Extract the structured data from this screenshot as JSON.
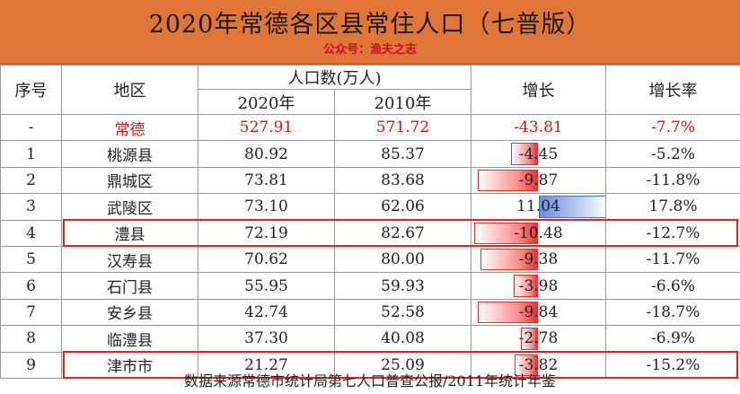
{
  "header": {
    "title": "2020年常德各区县常住人口（七普版）",
    "subtitle": "公众号：渔夫之志"
  },
  "table": {
    "headers": {
      "seq": "序号",
      "region": "地区",
      "population": "人口数(万人)",
      "y2020": "2020年",
      "y2010": "2010年",
      "growth": "增长",
      "rate": "增长率"
    },
    "rows": [
      {
        "seq": "-",
        "region": "常德",
        "p2020": "527.91",
        "p2010": "571.72",
        "growth": "-43.81",
        "rate": "-7.7%",
        "growth_value": -43.81
      },
      {
        "seq": "1",
        "region": "桃源县",
        "p2020": "80.92",
        "p2010": "85.37",
        "growth": "-4.45",
        "rate": "-5.2%",
        "growth_value": -4.45
      },
      {
        "seq": "2",
        "region": "鼎城区",
        "p2020": "73.81",
        "p2010": "83.68",
        "growth": "-9.87",
        "rate": "-11.8%",
        "growth_value": -9.87
      },
      {
        "seq": "3",
        "region": "武陵区",
        "p2020": "73.10",
        "p2010": "62.06",
        "growth": "11.04",
        "rate": "17.8%",
        "growth_value": 11.04
      },
      {
        "seq": "4",
        "region": "澧县",
        "p2020": "72.19",
        "p2010": "82.67",
        "growth": "-10.48",
        "rate": "-12.7%",
        "growth_value": -10.48
      },
      {
        "seq": "5",
        "region": "汉寿县",
        "p2020": "70.62",
        "p2010": "80.00",
        "growth": "-9.38",
        "rate": "-11.7%",
        "growth_value": -9.38
      },
      {
        "seq": "6",
        "region": "石门县",
        "p2020": "55.95",
        "p2010": "59.93",
        "growth": "-3.98",
        "rate": "-6.6%",
        "growth_value": -3.98
      },
      {
        "seq": "7",
        "region": "安乡县",
        "p2020": "42.74",
        "p2010": "52.58",
        "growth": "-9.84",
        "rate": "-18.7%",
        "growth_value": -9.84
      },
      {
        "seq": "8",
        "region": "临澧县",
        "p2020": "37.30",
        "p2010": "40.08",
        "growth": "-2.78",
        "rate": "-6.9%",
        "growth_value": -2.78
      },
      {
        "seq": "9",
        "region": "津市市",
        "p2020": "21.27",
        "p2010": "25.09",
        "growth": "-3.82",
        "rate": "-15.2%",
        "growth_value": -3.82
      }
    ],
    "highlighted_regions": [
      "澧县",
      "津市市"
    ]
  },
  "footer": {
    "source": "数据来源常德市统计局第七人口普查公报/2011年统计年鉴"
  },
  "colors": {
    "header_bg": "#e07538",
    "subtitle": "#c8102e",
    "total_text": "#d01818",
    "negative_bar": "#e83030",
    "positive_bar": "#6b8fd6",
    "highlight_border": "#e8211b"
  }
}
